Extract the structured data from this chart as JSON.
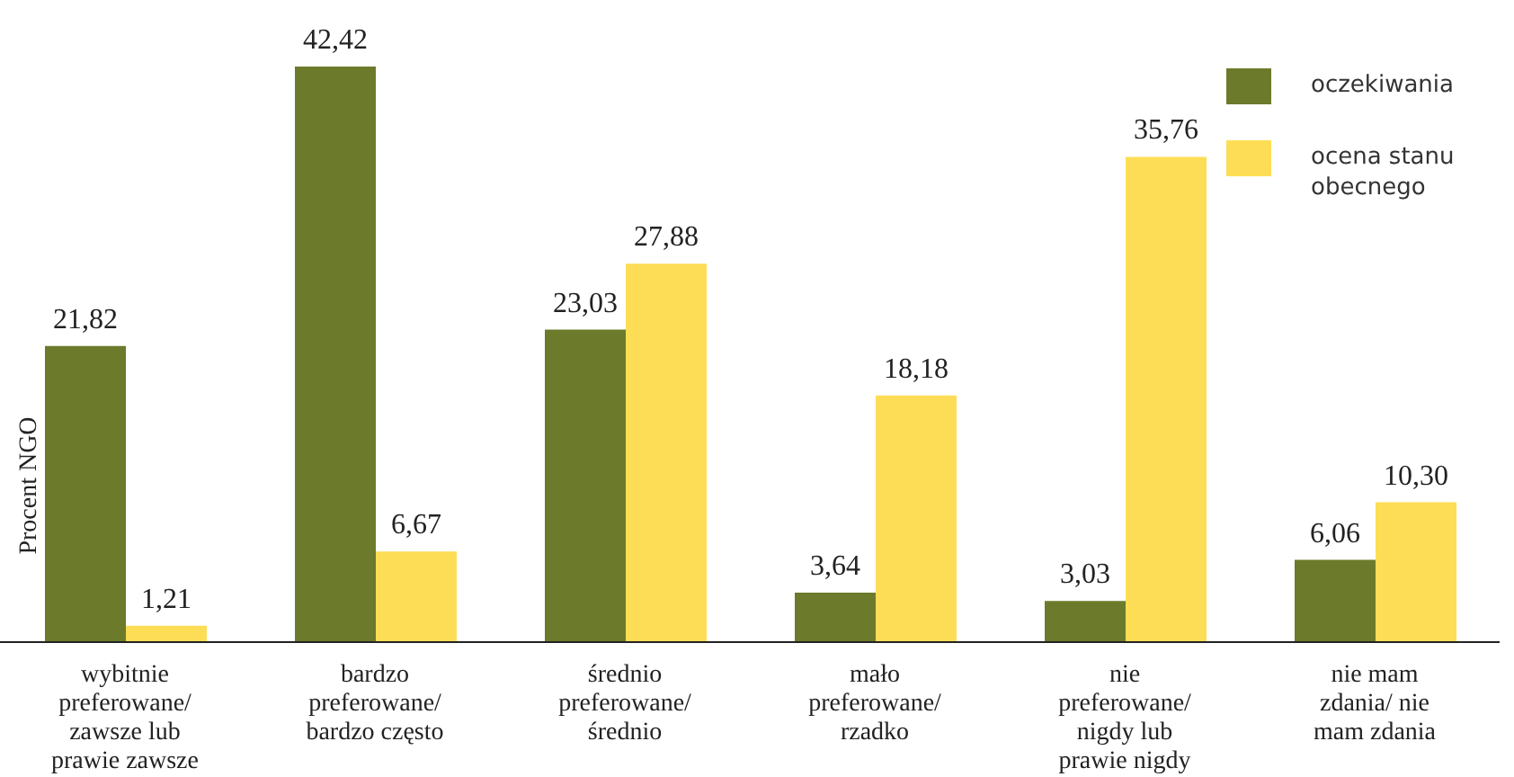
{
  "chart_data": {
    "type": "bar",
    "ylabel": "Procent NGO",
    "categories": [
      "wybitnie preferowane/ zawsze lub prawie zawsze",
      "bardzo preferowane/ bardzo często",
      "średnio preferowane/ średnio",
      "mało preferowane/ rzadko",
      "nie preferowane/ nigdy lub prawie nigdy",
      "nie mam zdania/ nie mam zdania"
    ],
    "series": [
      {
        "name": "oczekiwania",
        "color": "#6b7b2b",
        "values": [
          21.82,
          42.42,
          23.03,
          3.64,
          3.03,
          6.06
        ],
        "value_labels": [
          "21,82",
          "42,42",
          "23,03",
          "3,64",
          "3,03",
          "6,06"
        ]
      },
      {
        "name": "ocena stanu obecnego",
        "color": "#fddd55",
        "values": [
          1.21,
          6.67,
          27.88,
          18.18,
          35.76,
          10.3
        ],
        "value_labels": [
          "1,21",
          "6,67",
          "27,88",
          "18,18",
          "35,76",
          "10,30"
        ]
      }
    ],
    "legend": "top right"
  }
}
